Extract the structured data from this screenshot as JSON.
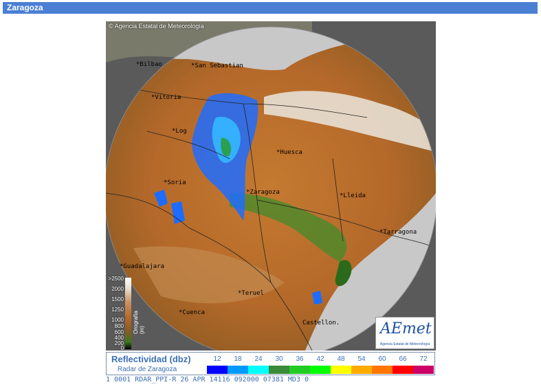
{
  "header": {
    "title": "Zaragoza"
  },
  "map": {
    "copyright": "© Agencia Estatal de Meteorología",
    "cities": [
      {
        "name": "*Bilbao"
      },
      {
        "name": "*San Sebastian"
      },
      {
        "name": "*Vitoria"
      },
      {
        "name": "*Log"
      },
      {
        "name": "*Huesca"
      },
      {
        "name": "*Soria"
      },
      {
        "name": "*Zaragoza"
      },
      {
        "name": "*Lleida"
      },
      {
        "name": "*Tarragona"
      },
      {
        "name": "*Guadalajara"
      },
      {
        "name": "*Teruel"
      },
      {
        "name": "*Cuenca"
      },
      {
        "name": "Castellon."
      }
    ],
    "orography": {
      "title": "Orografía (m)",
      "labels": [
        ">2500",
        "2000",
        "1500",
        "1250",
        "1000",
        "800",
        "600",
        "400",
        "200",
        "0"
      ]
    },
    "logo": {
      "main": "AEmet",
      "sub": "Agencia Estatal de Meteorología"
    }
  },
  "legend": {
    "title": "Reflectividad (dbz)",
    "subtitle": "Radar de Zaragoza",
    "values": [
      "12",
      "18",
      "24",
      "30",
      "36",
      "42",
      "48",
      "54",
      "60",
      "66",
      "72"
    ],
    "colors": [
      "#0000ff",
      "#0099ff",
      "#00ffff",
      "#3a8a3a",
      "#22cc22",
      "#00ff00",
      "#ffff00",
      "#ffaa00",
      "#ff7700",
      "#ff0000",
      "#cc0066"
    ]
  },
  "ticker": {
    "text": "1 0001  RDAR_PPI-R    26 APR  14116  092000  07381 MD3 0"
  }
}
